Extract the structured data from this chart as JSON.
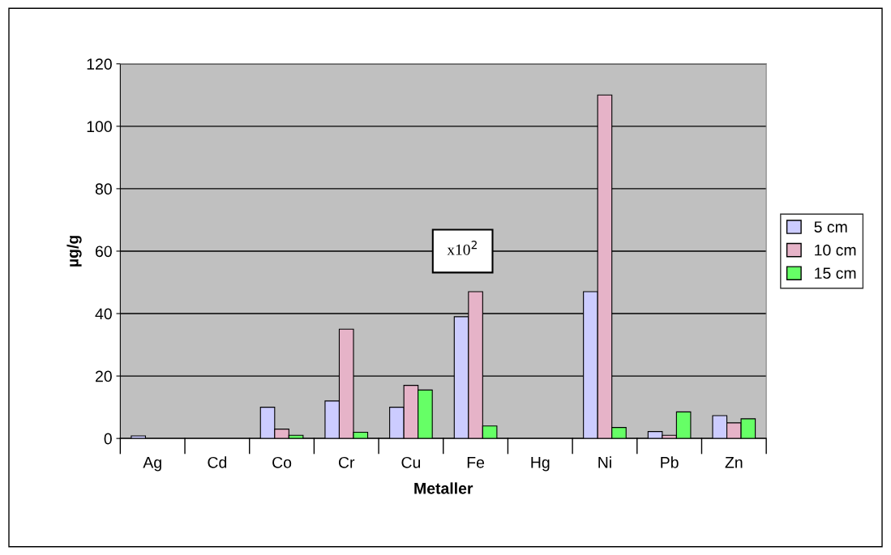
{
  "chart_data": {
    "type": "bar",
    "xlabel": "Metaller",
    "ylabel": "µg/g",
    "categories": [
      "Ag",
      "Cd",
      "Co",
      "Cr",
      "Cu",
      "Fe",
      "Hg",
      "Ni",
      "Pb",
      "Zn"
    ],
    "series": [
      {
        "name": "5 cm",
        "color": "#ccccff",
        "values": [
          0.8,
          null,
          10,
          12,
          10,
          39,
          null,
          47,
          2.2,
          7.3
        ]
      },
      {
        "name": "10 cm",
        "color": "#e6b3c8",
        "values": [
          null,
          null,
          3,
          35,
          17,
          47,
          null,
          110,
          1,
          5
        ]
      },
      {
        "name": "15 cm",
        "color": "#66ff66",
        "values": [
          null,
          null,
          1,
          2,
          15.5,
          4,
          null,
          3.5,
          8.5,
          6.3
        ]
      }
    ],
    "ylim": [
      0,
      120
    ],
    "yticks": [
      0,
      20,
      40,
      60,
      80,
      100,
      120
    ],
    "grid": "y",
    "legend": "right",
    "annotations": [
      "x10$^{2}$"
    ]
  }
}
